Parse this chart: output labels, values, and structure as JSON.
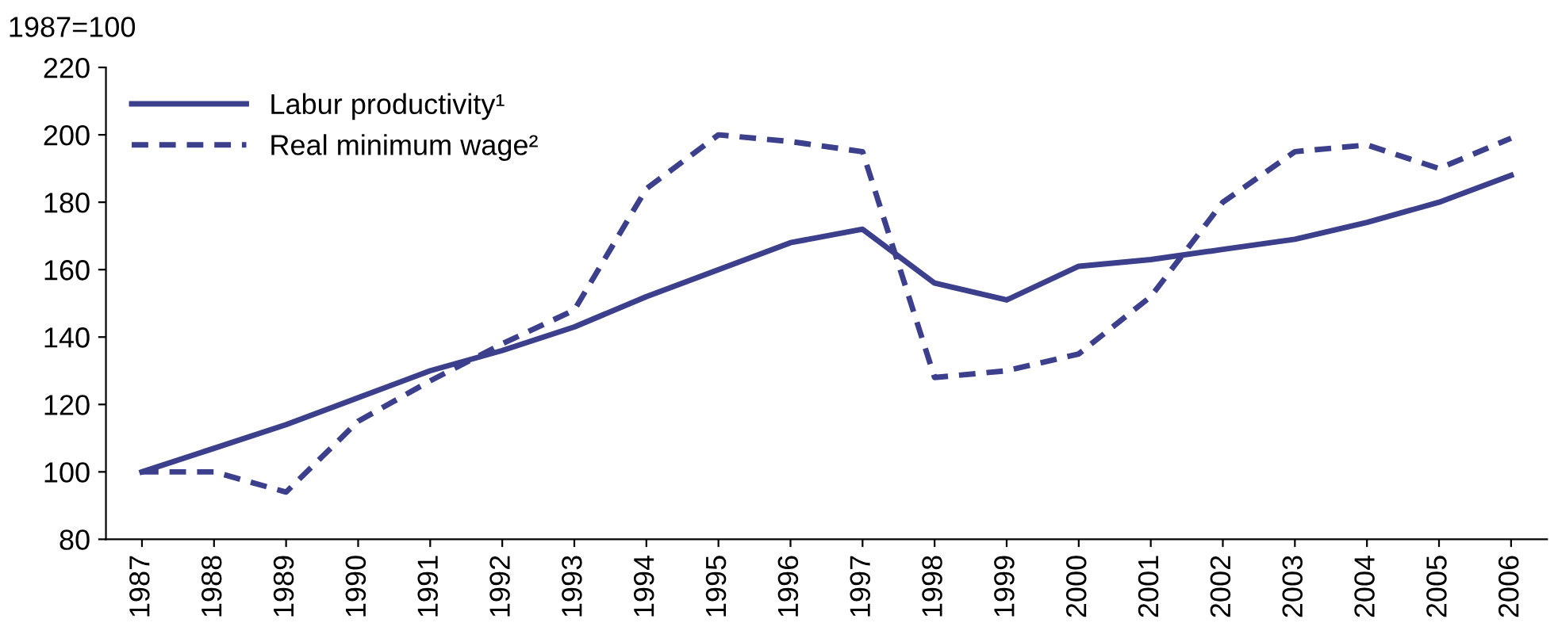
{
  "chart_data": {
    "type": "line",
    "ylabel": "1987=100",
    "categories": [
      "1987",
      "1988",
      "1989",
      "1990",
      "1991",
      "1992",
      "1993",
      "1994",
      "1995",
      "1996",
      "1997",
      "1998",
      "1999",
      "2000",
      "2001",
      "2002",
      "2003",
      "2004",
      "2005",
      "2006"
    ],
    "series": [
      {
        "name": "Labur productivity¹",
        "color": "#3b3f8c",
        "line_style": "solid",
        "values": [
          100,
          107,
          114,
          122,
          130,
          136,
          143,
          152,
          160,
          168,
          172,
          156,
          151,
          161,
          163,
          166,
          169,
          174,
          180,
          188
        ]
      },
      {
        "name": "Real minimum wage²",
        "color": "#3b3f8c",
        "line_style": "dashed",
        "values": [
          100,
          100,
          94,
          115,
          127,
          138,
          148,
          184,
          200,
          198,
          195,
          128,
          130,
          135,
          152,
          180,
          195,
          197,
          190,
          199
        ]
      }
    ],
    "ylim": [
      80,
      220
    ],
    "yticks": [
      80,
      100,
      120,
      140,
      160,
      180,
      200,
      220
    ],
    "grid": false,
    "legend": "top left",
    "marker": "none"
  }
}
